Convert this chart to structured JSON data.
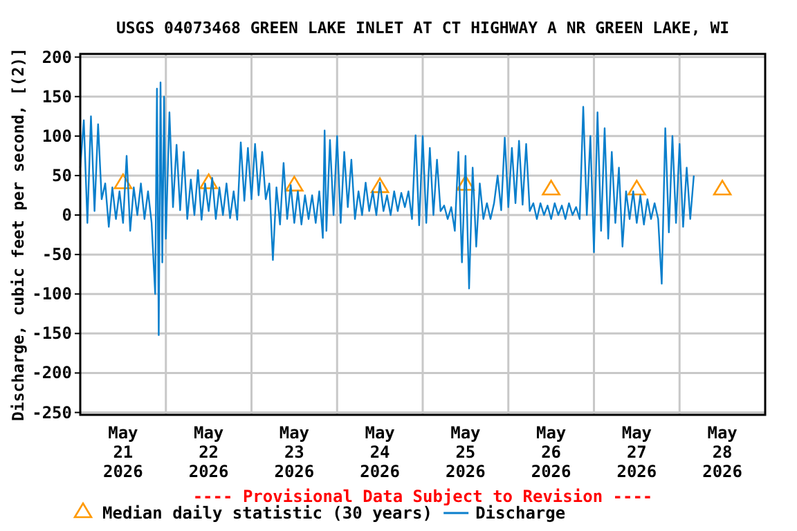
{
  "chart_data": {
    "type": "line",
    "title": "USGS 04073468 GREEN LAKE INLET AT CT HIGHWAY A NR GREEN LAKE, WI",
    "ylabel": "Discharge, cubic feet per second, [(2)]",
    "annotations": [
      "---- Provisional Data Subject to Revision ----"
    ],
    "xlim": [
      "2026-05-21T00:00",
      "2026-05-29T00:00"
    ],
    "xticks": [
      {
        "value": "2026-05-21T12:00",
        "label": "May\n21\n2026"
      },
      {
        "value": "2026-05-22T00:00",
        "label": null
      },
      {
        "value": "2026-05-22T12:00",
        "label": "May\n22\n2026"
      },
      {
        "value": "2026-05-23T00:00",
        "label": null
      },
      {
        "value": "2026-05-23T12:00",
        "label": "May\n23\n2026"
      },
      {
        "value": "2026-05-24T00:00",
        "label": null
      },
      {
        "value": "2026-05-24T12:00",
        "label": "May\n24\n2026"
      },
      {
        "value": "2026-05-25T00:00",
        "label": null
      },
      {
        "value": "2026-05-25T12:00",
        "label": "May\n25\n2026"
      },
      {
        "value": "2026-05-26T00:00",
        "label": null
      },
      {
        "value": "2026-05-26T12:00",
        "label": "May\n26\n2026"
      },
      {
        "value": "2026-05-27T00:00",
        "label": null
      },
      {
        "value": "2026-05-27T12:00",
        "label": "May\n27\n2026"
      },
      {
        "value": "2026-05-28T00:00",
        "label": null
      },
      {
        "value": "2026-05-28T12:00",
        "label": "May\n28\n2026"
      }
    ],
    "ylim": [
      -253,
      204
    ],
    "yticks": [
      200,
      150,
      100,
      50,
      0,
      -50,
      -100,
      -150,
      -200,
      -250
    ],
    "grid": true,
    "legend": "bottom",
    "series": [
      {
        "name": "Median daily statistic (30 years)",
        "type": "scatter",
        "marker": "triangle",
        "color": "#ff9900",
        "x": [
          "2026-05-21T12:00",
          "2026-05-22T12:00",
          "2026-05-23T12:00",
          "2026-05-24T12:00",
          "2026-05-25T12:00",
          "2026-05-26T12:00",
          "2026-05-27T12:00",
          "2026-05-28T12:00"
        ],
        "values": [
          41,
          41,
          38,
          36,
          39,
          33,
          33,
          33
        ]
      },
      {
        "name": "Discharge",
        "color": "#0a7fcc",
        "x": [
          "2026-05-21T00:00",
          "2026-05-21T01:00",
          "2026-05-21T02:00",
          "2026-05-21T03:00",
          "2026-05-21T04:00",
          "2026-05-21T05:00",
          "2026-05-21T06:00",
          "2026-05-21T07:00",
          "2026-05-21T08:00",
          "2026-05-21T09:00",
          "2026-05-21T10:00",
          "2026-05-21T11:00",
          "2026-05-21T12:00",
          "2026-05-21T13:00",
          "2026-05-21T14:00",
          "2026-05-21T15:00",
          "2026-05-21T16:00",
          "2026-05-21T17:00",
          "2026-05-21T18:00",
          "2026-05-21T19:00",
          "2026-05-21T20:00",
          "2026-05-21T21:00",
          "2026-05-21T21:30",
          "2026-05-21T22:00",
          "2026-05-21T22:30",
          "2026-05-21T23:00",
          "2026-05-21T23:30",
          "2026-05-22T00:00",
          "2026-05-22T01:00",
          "2026-05-22T02:00",
          "2026-05-22T03:00",
          "2026-05-22T04:00",
          "2026-05-22T05:00",
          "2026-05-22T06:00",
          "2026-05-22T07:00",
          "2026-05-22T08:00",
          "2026-05-22T09:00",
          "2026-05-22T10:00",
          "2026-05-22T11:00",
          "2026-05-22T12:00",
          "2026-05-22T13:00",
          "2026-05-22T14:00",
          "2026-05-22T15:00",
          "2026-05-22T16:00",
          "2026-05-22T17:00",
          "2026-05-22T18:00",
          "2026-05-22T19:00",
          "2026-05-22T20:00",
          "2026-05-22T21:00",
          "2026-05-22T22:00",
          "2026-05-22T23:00",
          "2026-05-23T00:00",
          "2026-05-23T01:00",
          "2026-05-23T02:00",
          "2026-05-23T03:00",
          "2026-05-23T04:00",
          "2026-05-23T05:00",
          "2026-05-23T06:00",
          "2026-05-23T07:00",
          "2026-05-23T08:00",
          "2026-05-23T09:00",
          "2026-05-23T10:00",
          "2026-05-23T11:00",
          "2026-05-23T12:00",
          "2026-05-23T13:00",
          "2026-05-23T14:00",
          "2026-05-23T15:00",
          "2026-05-23T16:00",
          "2026-05-23T17:00",
          "2026-05-23T18:00",
          "2026-05-23T19:00",
          "2026-05-23T20:00",
          "2026-05-23T20:30",
          "2026-05-23T21:00",
          "2026-05-23T22:00",
          "2026-05-23T23:00",
          "2026-05-24T00:00",
          "2026-05-24T01:00",
          "2026-05-24T02:00",
          "2026-05-24T03:00",
          "2026-05-24T04:00",
          "2026-05-24T05:00",
          "2026-05-24T06:00",
          "2026-05-24T07:00",
          "2026-05-24T08:00",
          "2026-05-24T09:00",
          "2026-05-24T10:00",
          "2026-05-24T11:00",
          "2026-05-24T12:00",
          "2026-05-24T13:00",
          "2026-05-24T14:00",
          "2026-05-24T15:00",
          "2026-05-24T16:00",
          "2026-05-24T17:00",
          "2026-05-24T18:00",
          "2026-05-24T19:00",
          "2026-05-24T20:00",
          "2026-05-24T21:00",
          "2026-05-24T22:00",
          "2026-05-24T23:00",
          "2026-05-25T00:00",
          "2026-05-25T01:00",
          "2026-05-25T02:00",
          "2026-05-25T03:00",
          "2026-05-25T04:00",
          "2026-05-25T05:00",
          "2026-05-25T06:00",
          "2026-05-25T07:00",
          "2026-05-25T08:00",
          "2026-05-25T09:00",
          "2026-05-25T10:00",
          "2026-05-25T11:00",
          "2026-05-25T12:00",
          "2026-05-25T13:00",
          "2026-05-25T14:00",
          "2026-05-25T15:00",
          "2026-05-25T16:00",
          "2026-05-25T17:00",
          "2026-05-25T18:00",
          "2026-05-25T19:00",
          "2026-05-25T20:00",
          "2026-05-25T21:00",
          "2026-05-25T22:00",
          "2026-05-25T23:00",
          "2026-05-26T00:00",
          "2026-05-26T01:00",
          "2026-05-26T02:00",
          "2026-05-26T03:00",
          "2026-05-26T04:00",
          "2026-05-26T05:00",
          "2026-05-26T06:00",
          "2026-05-26T07:00",
          "2026-05-26T08:00",
          "2026-05-26T09:00",
          "2026-05-26T10:00",
          "2026-05-26T11:00",
          "2026-05-26T12:00",
          "2026-05-26T13:00",
          "2026-05-26T14:00",
          "2026-05-26T15:00",
          "2026-05-26T16:00",
          "2026-05-26T17:00",
          "2026-05-26T18:00",
          "2026-05-26T19:00",
          "2026-05-26T20:00",
          "2026-05-26T21:00",
          "2026-05-26T22:00",
          "2026-05-26T23:00",
          "2026-05-27T00:00",
          "2026-05-27T01:00",
          "2026-05-27T02:00",
          "2026-05-27T03:00",
          "2026-05-27T04:00",
          "2026-05-27T05:00",
          "2026-05-27T06:00",
          "2026-05-27T07:00",
          "2026-05-27T08:00",
          "2026-05-27T09:00",
          "2026-05-27T10:00",
          "2026-05-27T11:00",
          "2026-05-27T12:00",
          "2026-05-27T13:00",
          "2026-05-27T14:00",
          "2026-05-27T15:00",
          "2026-05-27T16:00",
          "2026-05-27T17:00",
          "2026-05-27T18:00",
          "2026-05-27T19:00",
          "2026-05-27T20:00",
          "2026-05-27T21:00",
          "2026-05-27T22:00",
          "2026-05-27T23:00",
          "2026-05-28T00:00",
          "2026-05-28T01:00",
          "2026-05-28T02:00",
          "2026-05-28T03:00",
          "2026-05-28T04:00"
        ],
        "values": [
          60,
          120,
          -10,
          125,
          5,
          115,
          20,
          40,
          -15,
          35,
          -5,
          30,
          -10,
          75,
          -20,
          35,
          0,
          40,
          -5,
          30,
          -10,
          -100,
          160,
          -152,
          168,
          -60,
          150,
          -30,
          130,
          10,
          89,
          6,
          80,
          -5,
          45,
          0,
          57,
          -6,
          40,
          5,
          47,
          -5,
          35,
          0,
          40,
          -4,
          30,
          -6,
          92,
          18,
          85,
          20,
          90,
          25,
          80,
          20,
          40,
          -57,
          35,
          -12,
          66,
          -5,
          38,
          -10,
          30,
          -12,
          25,
          -5,
          25,
          -10,
          30,
          -29,
          107,
          -20,
          95,
          0,
          100,
          -10,
          80,
          10,
          70,
          -5,
          30,
          0,
          41,
          5,
          30,
          0,
          41,
          5,
          25,
          0,
          30,
          5,
          28,
          10,
          30,
          -5,
          101,
          -13,
          100,
          -10,
          85,
          0,
          70,
          5,
          12,
          -5,
          10,
          -20,
          80,
          -60,
          75,
          -93,
          60,
          -40,
          40,
          -5,
          15,
          -5,
          15,
          50,
          6,
          98,
          10,
          85,
          15,
          94,
          13,
          90,
          5,
          15,
          -5,
          15,
          0,
          12,
          -5,
          15,
          0,
          12,
          -5,
          15,
          0,
          10,
          -5,
          137,
          0,
          100,
          -47,
          130,
          -20,
          110,
          -30,
          80,
          -10,
          60,
          -40,
          30,
          -5,
          30,
          -10,
          25,
          -12,
          20,
          -5,
          15,
          -5,
          -87,
          110,
          -22,
          100,
          -10,
          90,
          -15,
          60,
          -5,
          50
        ]
      }
    ]
  }
}
